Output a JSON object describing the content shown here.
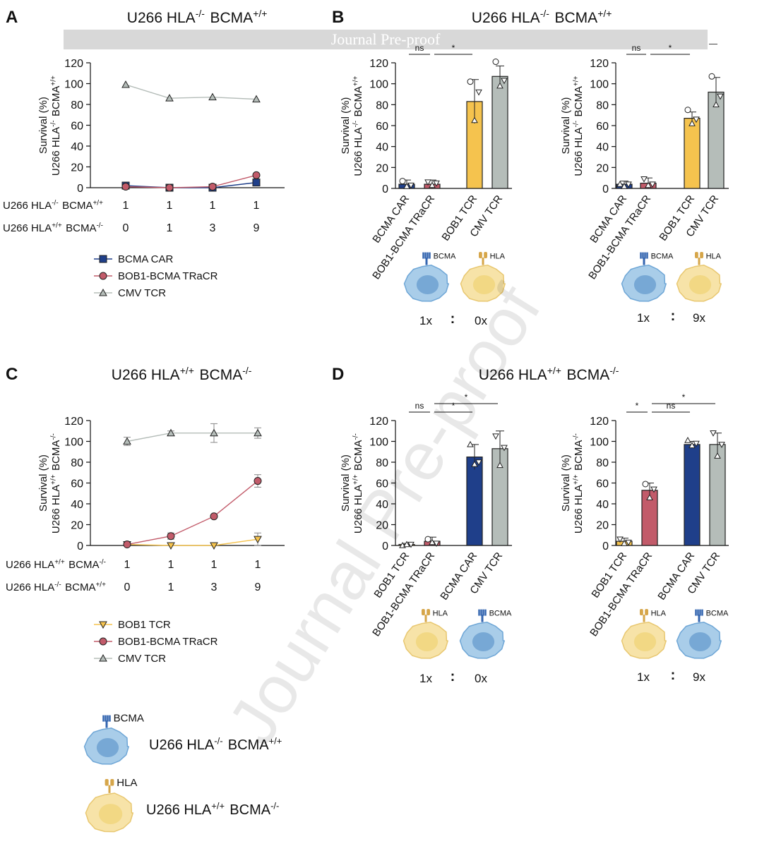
{
  "banner": {
    "text": "Journal Pre-proof"
  },
  "watermark": {
    "text": "Journal Pre-proof"
  },
  "colors": {
    "bcma_car": "#1f3f8a",
    "bob1_tracr": "#c25b6a",
    "bob1_tcr": "#f5c34e",
    "cmv_tcr": "#b5bdb9",
    "cell_blue": "#a9cde9",
    "cell_yellow": "#f7e3a8",
    "receptor_blue": "#3466b0",
    "receptor_gold": "#d6a64a"
  },
  "panels": {
    "A": {
      "letter": "A",
      "title": "U266 HLA-/- BCMA+/+"
    },
    "B": {
      "letter": "B",
      "title": "U266 HLA-/- BCMA+/+"
    },
    "C": {
      "letter": "C",
      "title": "U266 HLA+/+ BCMA-/-"
    },
    "D": {
      "letter": "D",
      "title": "U266 HLA+/+ BCMA-/-"
    }
  },
  "ratio_tables": {
    "A": {
      "rows": [
        {
          "label": "U266 HLA-/- BCMA+/+",
          "values": [
            "1",
            "1",
            "1",
            "1"
          ]
        },
        {
          "label": "U266 HLA+/+ BCMA-/-",
          "values": [
            "0",
            "1",
            "3",
            "9"
          ]
        }
      ]
    },
    "C": {
      "rows": [
        {
          "label": "U266 HLA+/+ BCMA-/-",
          "values": [
            "1",
            "1",
            "1",
            "1"
          ]
        },
        {
          "label": "U266 HLA-/- BCMA+/+",
          "values": [
            "0",
            "1",
            "3",
            "9"
          ]
        }
      ]
    }
  },
  "cell_labels": {
    "bcma": "BCMA",
    "hla": "HLA",
    "colon": ":"
  },
  "ratios": {
    "B1": {
      "left": "1x",
      "right": "0x"
    },
    "B2": {
      "left": "1x",
      "right": "9x"
    },
    "D1": {
      "left": "1x",
      "right": "0x"
    },
    "D2": {
      "left": "1x",
      "right": "9x"
    }
  },
  "bottom_legend": [
    {
      "label": "U266 HLA-/- BCMA+/+"
    },
    {
      "label": "U266 HLA+/+ BCMA-/-"
    }
  ],
  "chart_data": [
    {
      "id": "A",
      "type": "line",
      "ylabel": "Survival (%) U266 HLA-/- BCMA+/+",
      "ylim": [
        0,
        120
      ],
      "yticks": [
        "0",
        "20",
        "40",
        "60",
        "80",
        "100",
        "120"
      ],
      "x": [
        0,
        1,
        3,
        9
      ],
      "legend": "below",
      "series": [
        {
          "name": "BCMA CAR",
          "marker": "square",
          "values": [
            2,
            0,
            0,
            5
          ]
        },
        {
          "name": "BOB1-BCMA TRaCR",
          "marker": "circle",
          "values": [
            1,
            0,
            1,
            12
          ]
        },
        {
          "name": "CMV TCR",
          "marker": "triangle-up",
          "values": [
            99,
            86,
            87,
            85
          ]
        }
      ]
    },
    {
      "id": "C",
      "type": "line",
      "ylabel": "Survival (%) U266 HLA+/+ BCMA-/-",
      "ylim": [
        0,
        120
      ],
      "yticks": [
        "0",
        "20",
        "40",
        "60",
        "80",
        "100",
        "120"
      ],
      "x": [
        0,
        1,
        3,
        9
      ],
      "legend": "below",
      "series": [
        {
          "name": "BOB1 TCR",
          "marker": "triangle-down",
          "values": [
            1,
            0,
            0,
            6
          ],
          "err": [
            1,
            0,
            0,
            6
          ]
        },
        {
          "name": "BOB1-BCMA TRaCR",
          "marker": "circle",
          "values": [
            1,
            9,
            28,
            62
          ],
          "err": [
            1,
            3,
            1,
            6
          ]
        },
        {
          "name": "CMV TCR",
          "marker": "triangle-up",
          "values": [
            100,
            108,
            108,
            108
          ],
          "err": [
            4,
            2,
            9,
            5
          ]
        }
      ]
    },
    {
      "id": "B1",
      "type": "bar",
      "ylabel": "Survival (%) U266 HLA-/- BCMA+/+",
      "ylim": [
        0,
        120
      ],
      "yticks": [
        "0",
        "20",
        "40",
        "60",
        "80",
        "100",
        "120"
      ],
      "categories": [
        "BCMA CAR",
        "BOB1-BCMA TRaCR",
        "BOB1 TCR",
        "CMV TCR"
      ],
      "values": [
        4,
        4,
        83,
        107
      ],
      "err": [
        4,
        4,
        21,
        10
      ],
      "points": [
        [
          7,
          2,
          3
        ],
        [
          6,
          3,
          5
        ],
        [
          102,
          65,
          92
        ],
        [
          121,
          98,
          103
        ]
      ],
      "markers": [
        "circle",
        "triangle-down",
        "circle",
        "circle"
      ],
      "significance": [
        {
          "label": "ns",
          "from": 0,
          "to": 1,
          "level": 0
        },
        {
          "label": "*",
          "from": 1,
          "to": 2,
          "level": 0
        }
      ]
    },
    {
      "id": "B2",
      "type": "bar",
      "ylabel": "Survival (%) U266 HLA-/- BCMA+/+",
      "ylim": [
        0,
        120
      ],
      "yticks": [
        "0",
        "20",
        "40",
        "60",
        "80",
        "100",
        "120"
      ],
      "categories": [
        "BCMA CAR",
        "BOB1-BCMA TRaCR",
        "BOB1 TCR",
        "CMV TCR"
      ],
      "values": [
        4,
        5,
        67,
        92
      ],
      "err": [
        3,
        5,
        6,
        14
      ],
      "points": [
        [
          4,
          2,
          4
        ],
        [
          9,
          3,
          4
        ],
        [
          75,
          62,
          66
        ],
        [
          107,
          80,
          88
        ]
      ],
      "markers": [
        "triangle-up",
        "triangle-down",
        "circle",
        "circle"
      ],
      "significance": [
        {
          "label": "ns",
          "from": 0,
          "to": 1,
          "level": 0
        },
        {
          "label": "*",
          "from": 1,
          "to": 2,
          "level": 0
        }
      ]
    },
    {
      "id": "D1",
      "type": "bar",
      "ylabel": "Survival (%) U266 HLA+/+ BCMA-/-",
      "ylim": [
        0,
        120
      ],
      "yticks": [
        "0",
        "20",
        "40",
        "60",
        "80",
        "100",
        "120"
      ],
      "categories": [
        "BOB1 TCR",
        "BOB1-BCMA TRaCR",
        "BCMA CAR",
        "CMV TCR"
      ],
      "values": [
        1,
        4,
        85,
        93
      ],
      "err": [
        1,
        4,
        12,
        17
      ],
      "points": [
        [
          0,
          1,
          1
        ],
        [
          6,
          3,
          2
        ],
        [
          97,
          78,
          80
        ],
        [
          105,
          77,
          94
        ]
      ],
      "markers": [
        "triangle-up",
        "circle",
        "triangle-up",
        "triangle-down"
      ],
      "significance": [
        {
          "label": "ns",
          "from": 0,
          "to": 1,
          "level": 0
        },
        {
          "label": "*",
          "from": 1,
          "to": 2,
          "level": 0
        },
        {
          "label": "*",
          "from": 1,
          "to": 3,
          "level": 1
        }
      ]
    },
    {
      "id": "D2",
      "type": "bar",
      "ylabel": "Survival (%) U266 HLA+/+ BCMA-/-",
      "ylim": [
        0,
        120
      ],
      "yticks": [
        "0",
        "20",
        "40",
        "60",
        "80",
        "100",
        "120"
      ],
      "categories": [
        "BOB1 TCR",
        "BOB1-BCMA TRaCR",
        "BCMA CAR",
        "CMV TCR"
      ],
      "values": [
        4,
        53,
        97,
        97
      ],
      "err": [
        3,
        7,
        3,
        11
      ],
      "points": [
        [
          6,
          2,
          3
        ],
        [
          59,
          46,
          54
        ],
        [
          101,
          96,
          98
        ],
        [
          108,
          86,
          97
        ]
      ],
      "markers": [
        "triangle-down",
        "circle",
        "triangle-up",
        "triangle-down"
      ],
      "significance": [
        {
          "label": "*",
          "from": 0,
          "to": 1,
          "level": 0
        },
        {
          "label": "ns",
          "from": 1,
          "to": 2,
          "level": 0
        },
        {
          "label": "*",
          "from": 1,
          "to": 3,
          "level": 1
        }
      ]
    }
  ]
}
